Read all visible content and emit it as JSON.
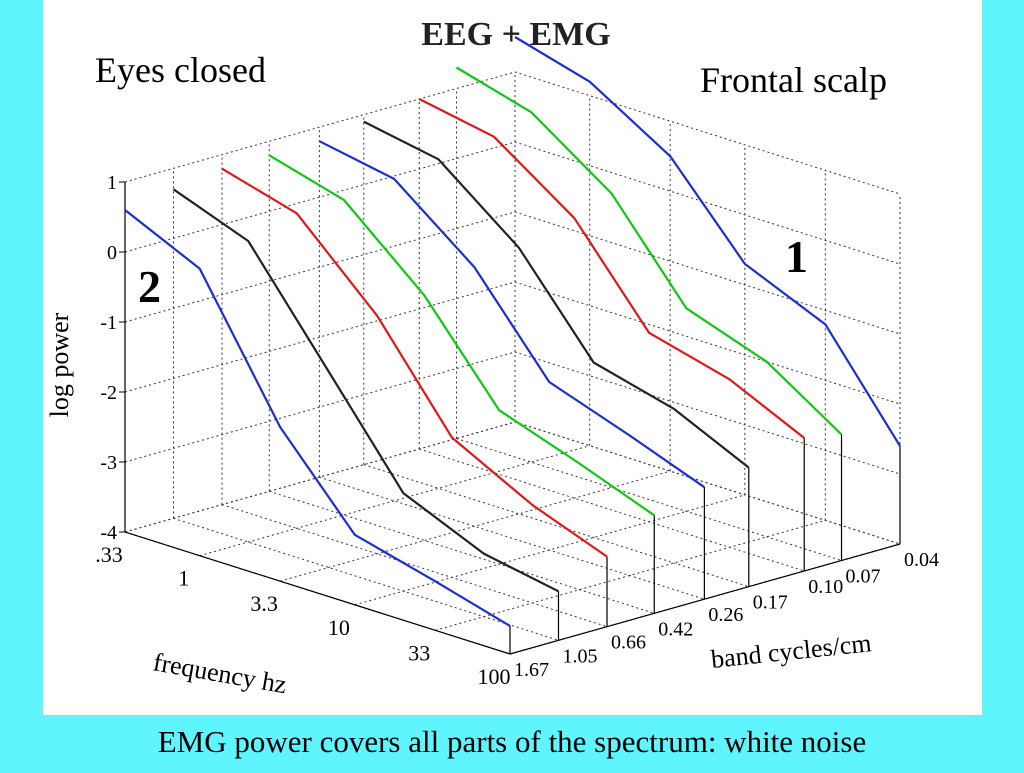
{
  "chart_data": {
    "type": "waterfall3d",
    "title": "EEG + EMG",
    "annotations": [
      "Eyes closed",
      "Frontal scalp",
      "1",
      "2"
    ],
    "caption": "EMG power covers all parts of the spectrum: white noise",
    "ylabel": "log power",
    "xlabel": "frequency hz",
    "zlabel": "band cycles/cm",
    "x": [
      0.33,
      1,
      3.3,
      10,
      33,
      100
    ],
    "xlim": [
      0.33,
      100
    ],
    "xticks": [
      {
        "value": 0.33,
        "label": ".33"
      },
      1,
      3.3,
      10,
      33,
      100
    ],
    "xlog": true,
    "ylim": [
      -4,
      1
    ],
    "yticks": [
      1,
      0,
      -1,
      -2,
      -3,
      -4
    ],
    "zlim": [
      1.67,
      0.04
    ],
    "zticks": [
      1.67,
      1.05,
      0.66,
      0.42,
      0.26,
      0.17,
      {
        "value": 0.1,
        "label": "0.10"
      },
      0.07,
      0.04
    ],
    "zlog": true,
    "grid": true,
    "series": [
      {
        "band": 1.67,
        "color": "#1a2fd0",
        "values": [
          0.6,
          0.1,
          -1.8,
          -3.0,
          -3.3,
          -3.6
        ]
      },
      {
        "band": 1.05,
        "color": "#222222",
        "values": [
          0.7,
          0.3,
          -1.2,
          -2.6,
          -3.1,
          -3.3
        ]
      },
      {
        "band": 0.66,
        "color": "#e01818",
        "values": [
          0.8,
          0.5,
          -0.6,
          -2.0,
          -2.6,
          -3.0
        ]
      },
      {
        "band": 0.42,
        "color": "#10c810",
        "values": [
          0.8,
          0.5,
          -0.5,
          -1.8,
          -2.2,
          -2.6
        ]
      },
      {
        "band": 0.26,
        "color": "#1a2fd0",
        "values": [
          0.8,
          0.6,
          -0.3,
          -1.6,
          -2.0,
          -2.4
        ]
      },
      {
        "band": 0.17,
        "color": "#222222",
        "values": [
          0.9,
          0.7,
          -0.2,
          -1.5,
          -1.8,
          -2.3
        ]
      },
      {
        "band": 0.1,
        "color": "#e01818",
        "values": [
          1.0,
          0.8,
          0.0,
          -1.3,
          -1.6,
          -2.1
        ]
      },
      {
        "band": 0.07,
        "color": "#10c810",
        "values": [
          1.3,
          1.0,
          0.2,
          -1.1,
          -1.5,
          -2.2
        ]
      },
      {
        "band": 0.04,
        "color": "#1a2fd0",
        "values": [
          1.5,
          1.2,
          0.5,
          -0.7,
          -1.2,
          -2.6
        ]
      }
    ]
  }
}
